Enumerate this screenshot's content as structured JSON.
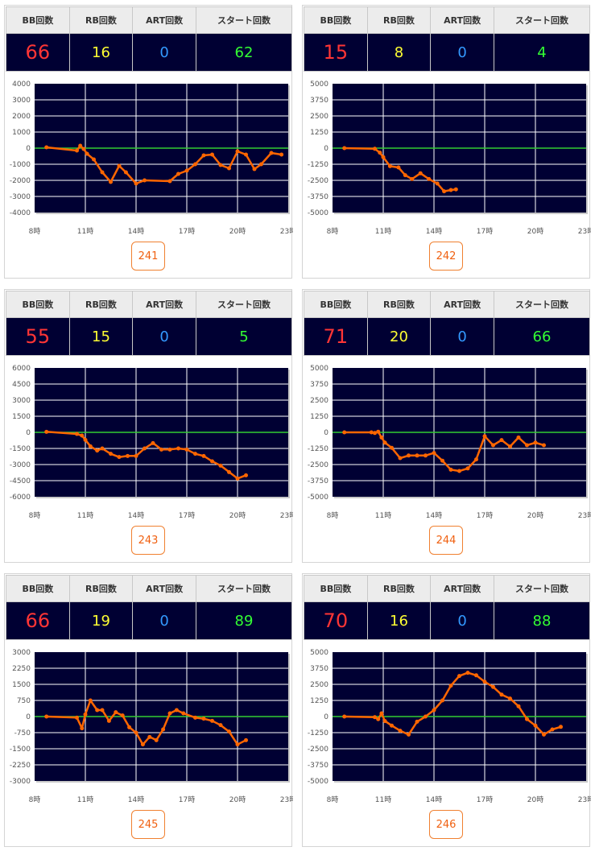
{
  "headers": {
    "bb": "BB回数",
    "rb": "RB回数",
    "art": "ART回数",
    "start": "スタート回数"
  },
  "colors": {
    "bb": "#ff3535",
    "rb": "#ffff33",
    "art": "#3399ff",
    "start": "#33ff33",
    "line": "#ff6600",
    "zero_line": "#33cc33",
    "plot_bg": "#000033"
  },
  "cards": [
    {
      "machine": "241",
      "bb": "66",
      "rb": "16",
      "art": "0",
      "start": "62"
    },
    {
      "machine": "242",
      "bb": "15",
      "rb": "8",
      "art": "0",
      "start": "4"
    },
    {
      "machine": "243",
      "bb": "55",
      "rb": "15",
      "art": "0",
      "start": "5"
    },
    {
      "machine": "244",
      "bb": "71",
      "rb": "20",
      "art": "0",
      "start": "66"
    },
    {
      "machine": "245",
      "bb": "66",
      "rb": "19",
      "art": "0",
      "start": "89"
    },
    {
      "machine": "246",
      "bb": "70",
      "rb": "16",
      "art": "0",
      "start": "88"
    }
  ],
  "chart_data": [
    {
      "type": "line",
      "x_ticks": [
        "8時",
        "11時",
        "14時",
        "17時",
        "20時",
        "23時"
      ],
      "xlim": [
        8,
        23
      ],
      "ylim": [
        -4000,
        4000
      ],
      "y_ticks": [
        "4000",
        "3000",
        "2000",
        "1000",
        "0",
        "-1000",
        "-2000",
        "-3000",
        "-4000"
      ],
      "x": [
        8.7,
        10.5,
        10.7,
        10.9,
        11.1,
        11.5,
        12.0,
        12.5,
        13.0,
        13.4,
        14.0,
        14.5,
        16.0,
        16.5,
        17.0,
        17.5,
        18.0,
        18.5,
        19.0,
        19.5,
        20.0,
        20.5,
        21.0,
        21.4,
        22.0,
        22.6
      ],
      "y": [
        50,
        -150,
        150,
        -50,
        -350,
        -700,
        -1500,
        -2100,
        -1100,
        -1500,
        -2200,
        -2000,
        -2050,
        -1600,
        -1400,
        -1000,
        -450,
        -400,
        -1050,
        -1250,
        -200,
        -400,
        -1300,
        -1000,
        -300,
        -400
      ]
    },
    {
      "type": "line",
      "x_ticks": [
        "8時",
        "11時",
        "14時",
        "17時",
        "20時",
        "23時"
      ],
      "xlim": [
        8,
        23
      ],
      "ylim": [
        -5000,
        5000
      ],
      "y_ticks": [
        "5000",
        "3750",
        "2500",
        "1250",
        "0",
        "-1250",
        "-2500",
        "-3750",
        "-5000"
      ],
      "x": [
        8.7,
        10.5,
        10.8,
        11.0,
        11.4,
        11.9,
        12.3,
        12.7,
        13.2,
        13.7,
        14.2,
        14.6,
        15.0,
        15.3
      ],
      "y": [
        0,
        -50,
        -350,
        -700,
        -1400,
        -1500,
        -2100,
        -2400,
        -1950,
        -2400,
        -2750,
        -3350,
        -3250,
        -3200
      ]
    },
    {
      "type": "line",
      "x_ticks": [
        "8時",
        "11時",
        "14時",
        "17時",
        "20時",
        "23時"
      ],
      "xlim": [
        8,
        23
      ],
      "ylim": [
        -6000,
        6000
      ],
      "y_ticks": [
        "6000",
        "4500",
        "3000",
        "1500",
        "0",
        "-1500",
        "-3000",
        "-4500",
        "-6000"
      ],
      "x": [
        8.7,
        10.5,
        10.8,
        11.0,
        11.3,
        11.7,
        12.0,
        12.5,
        13.0,
        13.5,
        14.0,
        14.5,
        15.0,
        15.5,
        16.0,
        16.5,
        17.0,
        17.5,
        18.0,
        18.5,
        19.0,
        19.5,
        20.0,
        20.5
      ],
      "y": [
        50,
        -150,
        -300,
        -700,
        -1300,
        -1700,
        -1500,
        -2000,
        -2300,
        -2200,
        -2200,
        -1500,
        -1000,
        -1600,
        -1600,
        -1500,
        -1600,
        -2000,
        -2200,
        -2700,
        -3100,
        -3700,
        -4300,
        -4000
      ]
    },
    {
      "type": "line",
      "x_ticks": [
        "8時",
        "11時",
        "14時",
        "17時",
        "20時",
        "23時"
      ],
      "xlim": [
        8,
        23
      ],
      "ylim": [
        -5000,
        5000
      ],
      "y_ticks": [
        "5000",
        "3750",
        "2500",
        "1250",
        "0",
        "-1250",
        "-2500",
        "-3750",
        "-5000"
      ],
      "x": [
        8.7,
        10.3,
        10.5,
        10.7,
        10.9,
        11.1,
        11.5,
        12.0,
        12.5,
        13.0,
        13.5,
        14.0,
        14.5,
        15.0,
        15.5,
        16.0,
        16.5,
        17.0,
        17.5,
        18.0,
        18.5,
        19.0,
        19.5,
        20.0,
        20.5
      ],
      "y": [
        0,
        0,
        -50,
        50,
        -400,
        -800,
        -1200,
        -2000,
        -1800,
        -1800,
        -1800,
        -1600,
        -2200,
        -2900,
        -3000,
        -2800,
        -2100,
        -300,
        -1000,
        -600,
        -1100,
        -400,
        -1000,
        -800,
        -1000
      ]
    },
    {
      "type": "line",
      "x_ticks": [
        "8時",
        "11時",
        "14時",
        "17時",
        "20時",
        "23時"
      ],
      "xlim": [
        8,
        23
      ],
      "ylim": [
        -3000,
        3000
      ],
      "y_ticks": [
        "3000",
        "2250",
        "1500",
        "750",
        "0",
        "-750",
        "-1500",
        "-2250",
        "-3000"
      ],
      "x": [
        8.7,
        10.5,
        10.8,
        11.0,
        11.3,
        11.7,
        12.0,
        12.4,
        12.8,
        13.2,
        13.6,
        14.0,
        14.4,
        14.8,
        15.2,
        15.6,
        16.0,
        16.4,
        16.8,
        17.5,
        18.0,
        18.5,
        19.0,
        19.5,
        20.0,
        20.5
      ],
      "y": [
        0,
        -50,
        -550,
        100,
        750,
        300,
        300,
        -200,
        200,
        50,
        -500,
        -750,
        -1300,
        -950,
        -1100,
        -600,
        150,
        300,
        150,
        -50,
        -100,
        -200,
        -400,
        -700,
        -1300,
        -1100
      ]
    },
    {
      "type": "line",
      "x_ticks": [
        "8時",
        "11時",
        "14時",
        "17時",
        "20時",
        "23時"
      ],
      "xlim": [
        8,
        23
      ],
      "ylim": [
        -5000,
        5000
      ],
      "y_ticks": [
        "5000",
        "3750",
        "2500",
        "1250",
        "0",
        "-1250",
        "-2500",
        "-3750",
        "-5000"
      ],
      "x": [
        8.7,
        10.5,
        10.7,
        10.9,
        11.1,
        11.5,
        12.0,
        12.5,
        13.0,
        13.5,
        14.0,
        14.5,
        15.0,
        15.5,
        16.0,
        16.5,
        17.0,
        17.5,
        18.0,
        18.5,
        19.0,
        19.5,
        20.0,
        20.5,
        21.0,
        21.5
      ],
      "y": [
        0,
        -50,
        -200,
        250,
        -350,
        -700,
        -1100,
        -1400,
        -400,
        0,
        500,
        1250,
        2400,
        3150,
        3400,
        3200,
        2700,
        2300,
        1700,
        1400,
        800,
        -200,
        -700,
        -1400,
        -1000,
        -800
      ]
    }
  ]
}
